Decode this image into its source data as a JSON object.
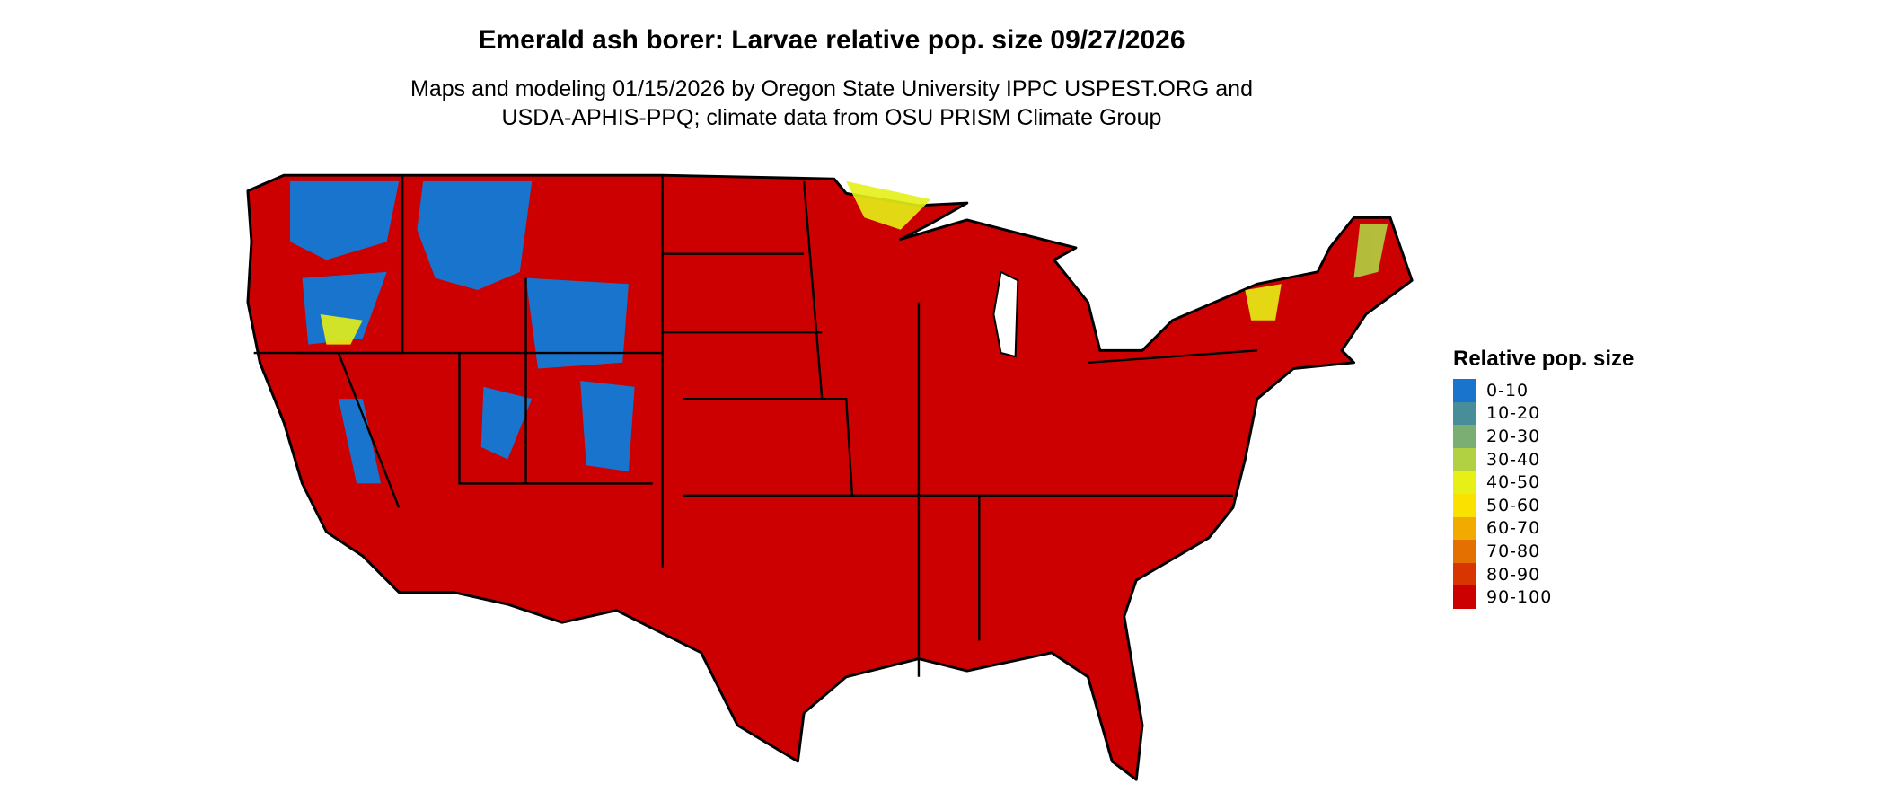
{
  "title": "Emerald ash borer: Larvae relative pop. size 09/27/2026",
  "subtitle_lines": [
    "Maps and modeling 01/15/2026 by Oregon State University IPPC USPEST.ORG and",
    "USDA-APHIS-PPQ; climate data from OSU PRISM Climate Group"
  ],
  "legend": {
    "title": "Relative pop. size",
    "items": [
      {
        "label": "0-10",
        "color": "#1874cd"
      },
      {
        "label": "10-20",
        "color": "#478e9a"
      },
      {
        "label": "20-30",
        "color": "#7aae72"
      },
      {
        "label": "30-40",
        "color": "#b2d142"
      },
      {
        "label": "40-50",
        "color": "#e6f016"
      },
      {
        "label": "50-60",
        "color": "#fae100"
      },
      {
        "label": "60-70",
        "color": "#f0aa00"
      },
      {
        "label": "70-80",
        "color": "#e37000"
      },
      {
        "label": "80-90",
        "color": "#d93500"
      },
      {
        "label": "90-100",
        "color": "#cc0000"
      }
    ]
  },
  "map": {
    "region": "Contiguous United States",
    "dominant_class": "90-100",
    "low_classes_region": "Western mountains and northern border"
  }
}
